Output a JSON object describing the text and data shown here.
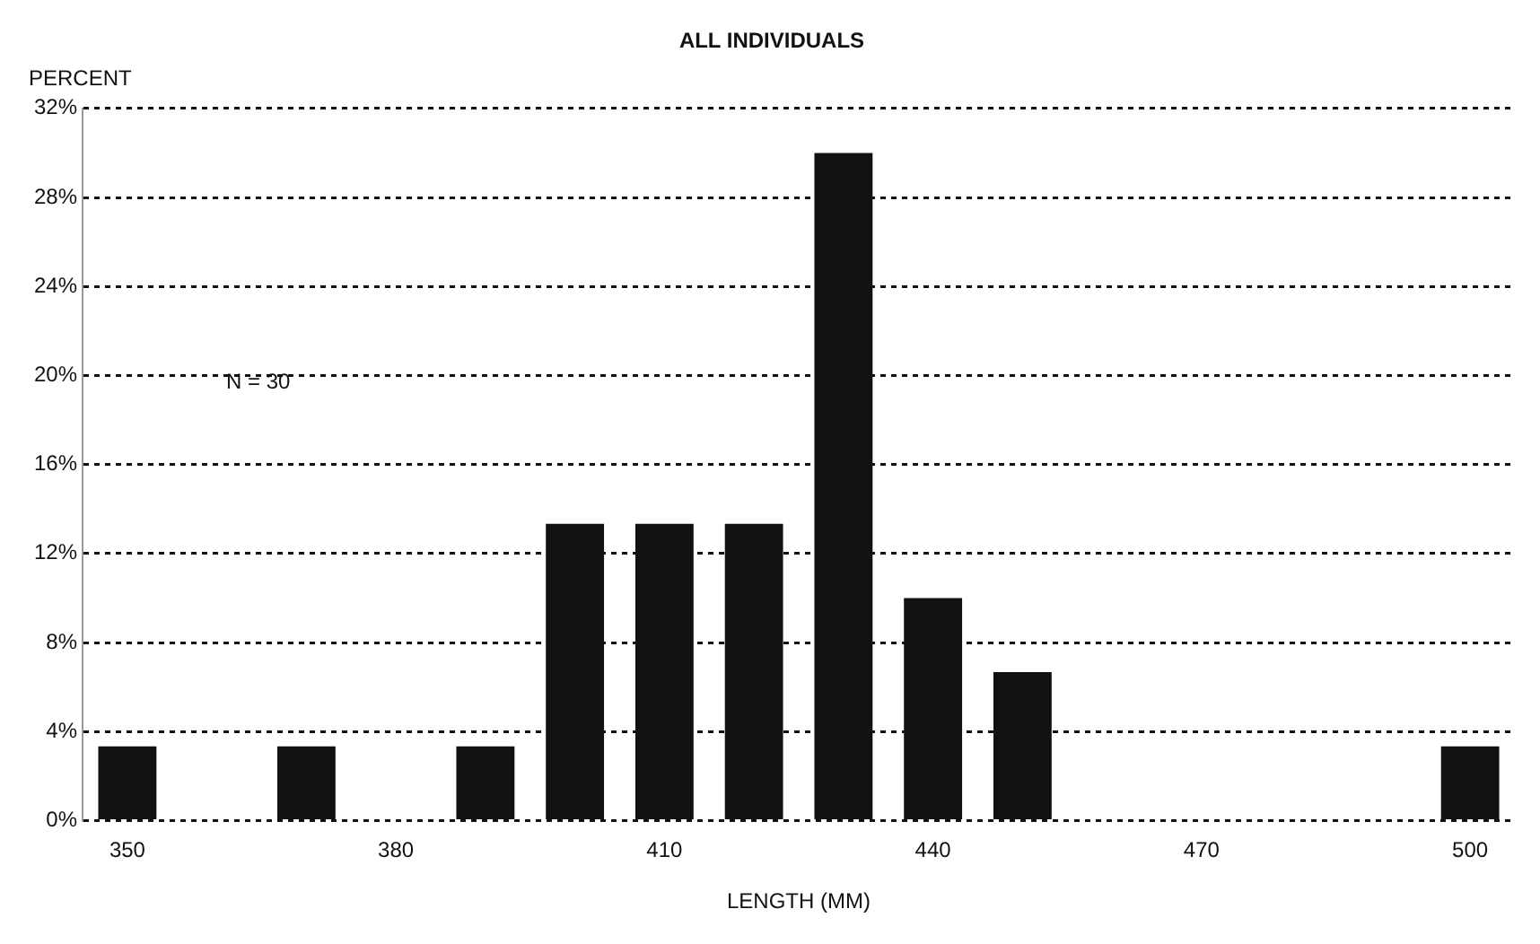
{
  "chart_data": {
    "type": "bar",
    "title": "ALL INDIVIDUALS",
    "xlabel": "LENGTH (MM)",
    "ylabel": "PERCENT",
    "annotations": [
      "N = 30"
    ],
    "categories": [
      "350",
      null,
      null,
      "380",
      null,
      null,
      "410",
      null,
      null,
      "440",
      null,
      null,
      "470",
      null,
      null,
      "500"
    ],
    "values": [
      3.33,
      0,
      3.33,
      0,
      3.33,
      13.33,
      13.33,
      13.33,
      30,
      10,
      6.67,
      0,
      0,
      0,
      0,
      3.33
    ],
    "color": "#111111",
    "ylim": [
      0,
      32
    ],
    "yticks": [
      {
        "value": 0,
        "label": "0%"
      },
      {
        "value": 4,
        "label": "4%"
      },
      {
        "value": 8,
        "label": "8%"
      },
      {
        "value": 12,
        "label": "12%"
      },
      {
        "value": 16,
        "label": "16%"
      },
      {
        "value": 20,
        "label": "20%"
      },
      {
        "value": 24,
        "label": "24%"
      },
      {
        "value": 28,
        "label": "28%"
      },
      {
        "value": 32,
        "label": "32%"
      }
    ],
    "grid": "y",
    "legend": false
  }
}
